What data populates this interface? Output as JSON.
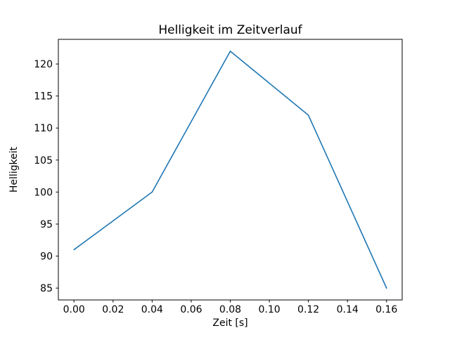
{
  "chart_data": {
    "type": "line",
    "title": "Helligkeit im Zeitverlauf",
    "xlabel": "Zeit [s]",
    "ylabel": "Helligkeit",
    "x": [
      0.0,
      0.04,
      0.08,
      0.12,
      0.16
    ],
    "y": [
      91,
      100,
      122,
      112,
      85
    ],
    "series": [
      {
        "name": "Helligkeit",
        "x": [
          0.0,
          0.04,
          0.08,
          0.12,
          0.16
        ],
        "values": [
          91,
          100,
          122,
          112,
          85
        ]
      }
    ],
    "xticks": [
      0.0,
      0.02,
      0.04,
      0.06,
      0.08,
      0.1,
      0.12,
      0.14,
      0.16
    ],
    "yticks": [
      85,
      90,
      95,
      100,
      105,
      110,
      115,
      120
    ],
    "xtick_decimals": 2,
    "xlim": [
      -0.008,
      0.168
    ],
    "ylim": [
      83.15,
      123.85
    ],
    "grid": false,
    "legend": null,
    "line_color": "#1f77b4",
    "axis_color": "#000000",
    "background_color": "#ffffff"
  }
}
